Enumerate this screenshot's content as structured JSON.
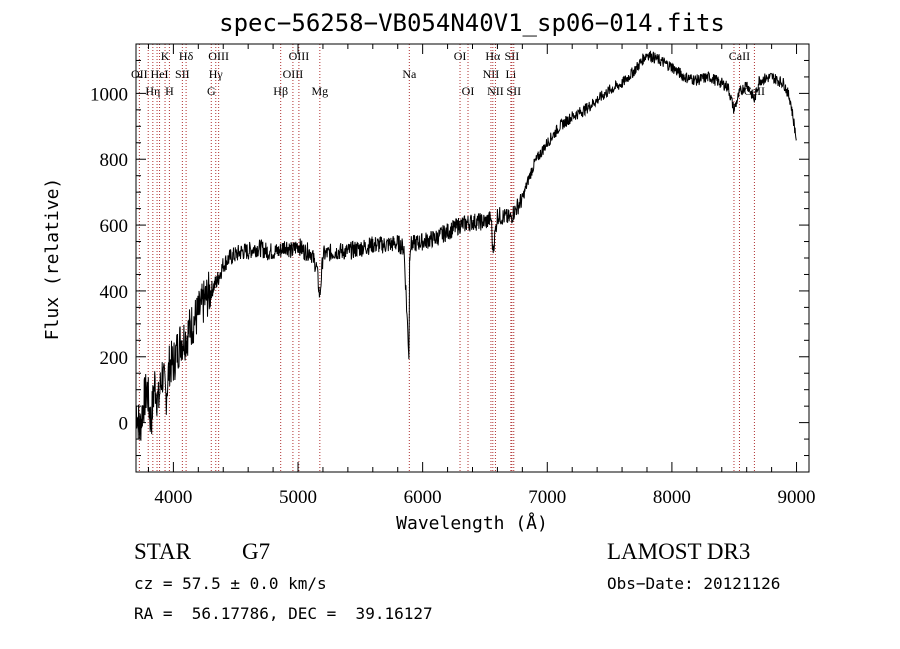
{
  "chart_data": {
    "type": "line",
    "title": "spec−56258−VB054N40V1_sp06−014.fits",
    "xlabel": "Wavelength (Å)",
    "ylabel": "Flux (relative)",
    "xlim": [
      3700,
      9100
    ],
    "ylim": [
      -150,
      1150
    ],
    "xticks": [
      4000,
      5000,
      6000,
      7000,
      8000,
      9000
    ],
    "yticks": [
      0,
      200,
      400,
      600,
      800,
      1000
    ],
    "series": [
      {
        "name": "flux",
        "x": [
          3700,
          3730,
          3760,
          3790,
          3820,
          3850,
          3880,
          3910,
          3940,
          3970,
          4000,
          4030,
          4060,
          4100,
          4150,
          4200,
          4250,
          4300,
          4350,
          4400,
          4450,
          4500,
          4550,
          4600,
          4650,
          4700,
          4750,
          4800,
          4850,
          4900,
          4950,
          5000,
          5050,
          5100,
          5150,
          5175,
          5200,
          5300,
          5400,
          5500,
          5600,
          5700,
          5800,
          5850,
          5890,
          5895,
          5900,
          5950,
          6000,
          6100,
          6200,
          6300,
          6400,
          6500,
          6550,
          6563,
          6600,
          6700,
          6800,
          6850,
          6900,
          7000,
          7100,
          7200,
          7300,
          7400,
          7500,
          7600,
          7700,
          7800,
          7900,
          8000,
          8100,
          8200,
          8300,
          8400,
          8450,
          8498,
          8542,
          8600,
          8662,
          8700,
          8800,
          8900,
          8950,
          9000
        ],
        "y": [
          50,
          -20,
          60,
          100,
          0,
          120,
          60,
          150,
          80,
          180,
          180,
          220,
          250,
          260,
          300,
          330,
          370,
          400,
          430,
          480,
          500,
          510,
          520,
          520,
          530,
          530,
          520,
          520,
          520,
          540,
          520,
          540,
          520,
          520,
          470,
          380,
          510,
          520,
          520,
          530,
          540,
          540,
          545,
          530,
          200,
          490,
          540,
          545,
          550,
          560,
          580,
          600,
          610,
          610,
          620,
          520,
          630,
          620,
          680,
          740,
          790,
          850,
          900,
          930,
          950,
          980,
          1010,
          1030,
          1070,
          1120,
          1100,
          1080,
          1050,
          1040,
          1050,
          1030,
          1020,
          950,
          1000,
          1030,
          980,
          1040,
          1050,
          1030,
          980,
          860
        ]
      }
    ],
    "spectral_lines": [
      {
        "w": 3727,
        "label": "OII",
        "row": 1
      },
      {
        "w": 3798,
        "label": "",
        "row": 0
      },
      {
        "w": 3835,
        "label": "Hη",
        "row": 2
      },
      {
        "w": 3869,
        "label": "",
        "row": 0
      },
      {
        "w": 3889,
        "label": "HeI",
        "row": 1
      },
      {
        "w": 3933,
        "label": "K",
        "row": 0
      },
      {
        "w": 3968,
        "label": "H",
        "row": 2
      },
      {
        "w": 4072,
        "label": "SII",
        "row": 1
      },
      {
        "w": 4102,
        "label": "Hδ",
        "row": 0
      },
      {
        "w": 4304,
        "label": "G",
        "row": 2
      },
      {
        "w": 4340,
        "label": "Hγ",
        "row": 1
      },
      {
        "w": 4363,
        "label": "OIII",
        "row": 0
      },
      {
        "w": 4861,
        "label": "Hβ",
        "row": 2
      },
      {
        "w": 4959,
        "label": "OIII",
        "row": 1
      },
      {
        "w": 5007,
        "label": "OIII",
        "row": 0
      },
      {
        "w": 5175,
        "label": "Mg",
        "row": 2
      },
      {
        "w": 5893,
        "label": "Na",
        "row": 1
      },
      {
        "w": 6300,
        "label": "OI",
        "row": 0
      },
      {
        "w": 6364,
        "label": "OI",
        "row": 2
      },
      {
        "w": 6548,
        "label": "NII",
        "row": 1
      },
      {
        "w": 6563,
        "label": "Hα",
        "row": 0
      },
      {
        "w": 6584,
        "label": "NII",
        "row": 2
      },
      {
        "w": 6708,
        "label": "Li",
        "row": 1
      },
      {
        "w": 6716,
        "label": "SII",
        "row": 0
      },
      {
        "w": 6731,
        "label": "SII",
        "row": 2
      },
      {
        "w": 8498,
        "label": "",
        "row": 0
      },
      {
        "w": 8542,
        "label": "CaII",
        "row": 0
      },
      {
        "w": 8662,
        "label": "CaII",
        "row": 2
      }
    ]
  },
  "info": {
    "object_type": "STAR",
    "subclass": "G7",
    "survey": "LAMOST DR3",
    "cz": "cz = 57.5 ± 0.0 km/s",
    "obs_date": "Obs−Date: 20121126",
    "coords": "RA =  56.17786, DEC =  39.16127"
  }
}
